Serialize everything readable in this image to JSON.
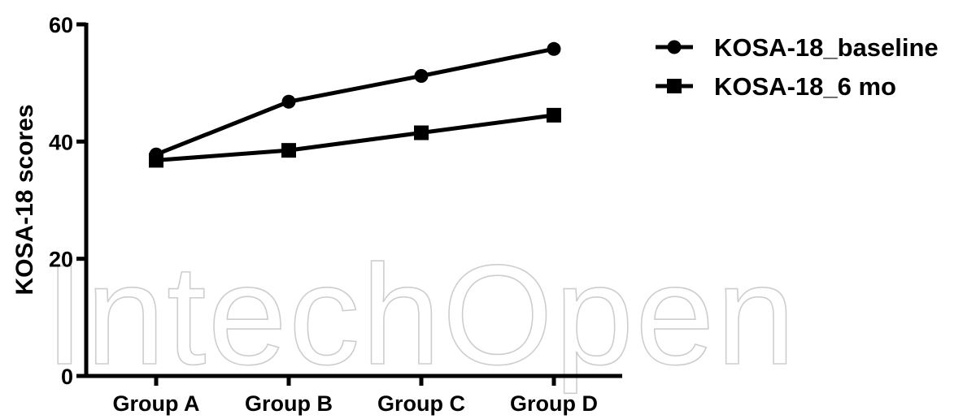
{
  "watermark_text": "IntechOpen",
  "chart_data": {
    "type": "line",
    "categories": [
      "Group A",
      "Group B",
      "Group C",
      "Group D"
    ],
    "series": [
      {
        "name": "KOSA-18_baseline",
        "marker": "circle",
        "values": [
          37.8,
          46.8,
          51.2,
          55.8
        ]
      },
      {
        "name": "KOSA-18_6 mo",
        "marker": "square",
        "values": [
          36.8,
          38.5,
          41.5,
          44.5
        ]
      }
    ],
    "title": "",
    "xlabel": "",
    "ylabel": "KOSA-18 scores",
    "ylim": [
      0,
      60
    ],
    "yticks": [
      0,
      20,
      40,
      60
    ],
    "grid": false,
    "legend_position": "top-right",
    "color": "#000000"
  }
}
